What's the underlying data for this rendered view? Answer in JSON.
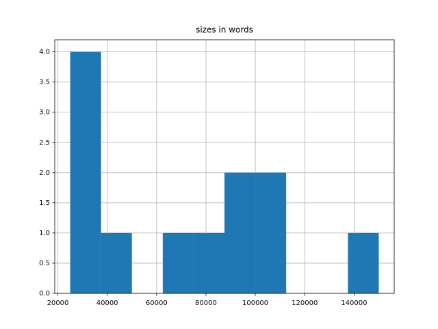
{
  "chart_data": {
    "type": "histogram",
    "title": "sizes in words",
    "bins": [
      25000,
      37500,
      50000,
      62500,
      75000,
      87500,
      100000,
      112500,
      125000,
      137500,
      150000
    ],
    "values": [
      4,
      1,
      0,
      1,
      1,
      2,
      2,
      0,
      0,
      1
    ],
    "color": "#1f77b4",
    "xlim": [
      18750,
      156250
    ],
    "xticks": [
      20000,
      40000,
      60000,
      80000,
      100000,
      120000,
      140000
    ],
    "ylim": [
      0,
      4.2
    ],
    "yticks": [
      {
        "value": 0,
        "label": "0.0"
      },
      {
        "value": 0.5,
        "label": "0.5"
      },
      {
        "value": 1,
        "label": "1.0"
      },
      {
        "value": 1.5,
        "label": "1.5"
      },
      {
        "value": 2,
        "label": "2.0"
      },
      {
        "value": 2.5,
        "label": "2.5"
      },
      {
        "value": 3,
        "label": "3.0"
      },
      {
        "value": 3.5,
        "label": "3.5"
      },
      {
        "value": 4,
        "label": "4.0"
      }
    ],
    "grid": true
  }
}
